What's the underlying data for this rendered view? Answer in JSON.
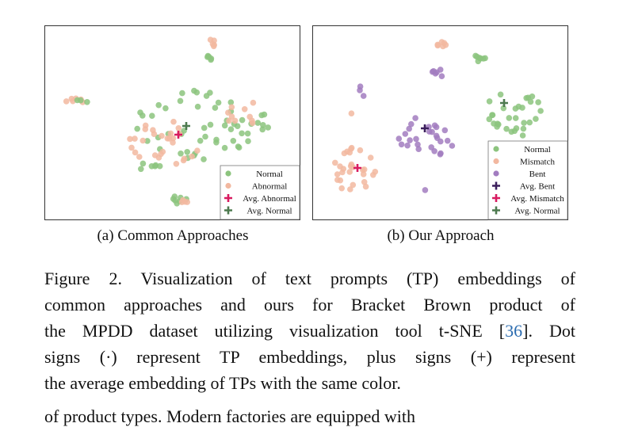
{
  "figure": {
    "panel_a": {
      "subcaption": "(a) Common Approaches",
      "legend": [
        {
          "label": "Normal",
          "marker": "dot",
          "color": "#8cc47e"
        },
        {
          "label": "Abnormal",
          "marker": "dot",
          "color": "#f2b8a0"
        },
        {
          "label": "Avg. Abnormal",
          "marker": "plus",
          "color": "#d81b60"
        },
        {
          "label": "Avg. Normal",
          "marker": "plus",
          "color": "#4d7a4f"
        }
      ]
    },
    "panel_b": {
      "subcaption": "(b) Our Approach",
      "legend": [
        {
          "label": "Normal",
          "marker": "dot",
          "color": "#8cc47e"
        },
        {
          "label": "Mismatch",
          "marker": "dot",
          "color": "#f2b8a0"
        },
        {
          "label": "Bent",
          "marker": "dot",
          "color": "#a27cc0"
        },
        {
          "label": "Avg. Bent",
          "marker": "plus",
          "color": "#3b1f5c"
        },
        {
          "label": "Avg. Mismatch",
          "marker": "plus",
          "color": "#d81b60"
        },
        {
          "label": "Avg. Normal",
          "marker": "plus",
          "color": "#4d7a4f"
        }
      ]
    },
    "colors": {
      "normal": "#8cc47e",
      "abnormal": "#f2b8a0",
      "bent": "#a27cc0",
      "avg_abnormal": "#d81b60",
      "avg_normal": "#4d7a4f",
      "avg_bent": "#3b1f5c"
    }
  },
  "caption": {
    "line1": "Figure 2.  Visualization of text prompts (TP) embeddings of",
    "line2": "common approaches and ours for Bracket Brown product of",
    "line3_pre": "the MPDD dataset utilizing visualization tool t-SNE [",
    "line3_cite": "36",
    "line3_post": "]. Dot",
    "line4": "signs (·) represent TP embeddings, plus signs (+) represent",
    "line5": "the average embedding of TPs with the same color."
  },
  "next_text": "of product types.  Modern factories are equipped with"
}
